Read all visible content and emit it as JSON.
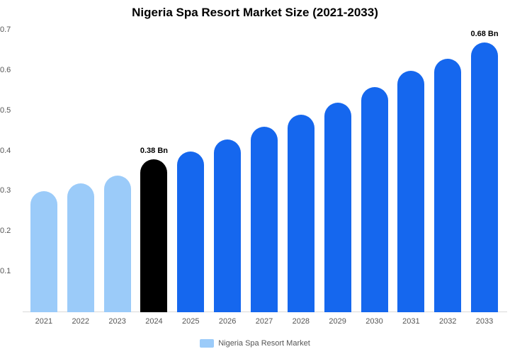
{
  "chart_data": {
    "type": "bar",
    "title": "Nigeria Spa Resort Market Size (2021-2033)",
    "categories": [
      "2021",
      "2022",
      "2023",
      "2024",
      "2025",
      "2026",
      "2027",
      "2028",
      "2029",
      "2030",
      "2031",
      "2032",
      "2033"
    ],
    "values": [
      0.3,
      0.32,
      0.34,
      0.38,
      0.4,
      0.43,
      0.46,
      0.49,
      0.52,
      0.56,
      0.6,
      0.63,
      0.68
    ],
    "data_labels": [
      "",
      "",
      "",
      "0.38 Bn",
      "",
      "",
      "",
      "",
      "",
      "",
      "",
      "",
      "0.68 Bn"
    ],
    "bar_colors": [
      "light",
      "light",
      "light",
      "dark",
      "blue",
      "blue",
      "blue",
      "blue",
      "blue",
      "blue",
      "blue",
      "blue",
      "blue"
    ],
    "colors": {
      "light": "#9BCBF9",
      "dark": "#000000",
      "blue": "#1567EE"
    },
    "xlabel": "",
    "ylabel": "",
    "ylim": [
      0,
      0.7
    ],
    "yticks": [
      "0.7",
      "0.6",
      "0.5",
      "0.4",
      "0.3",
      "0.2",
      "0.1"
    ],
    "grid": false,
    "legend": {
      "label": "Nigeria Spa Resort Market",
      "position": "bottom",
      "swatch_color": "#9BCBF9"
    }
  }
}
